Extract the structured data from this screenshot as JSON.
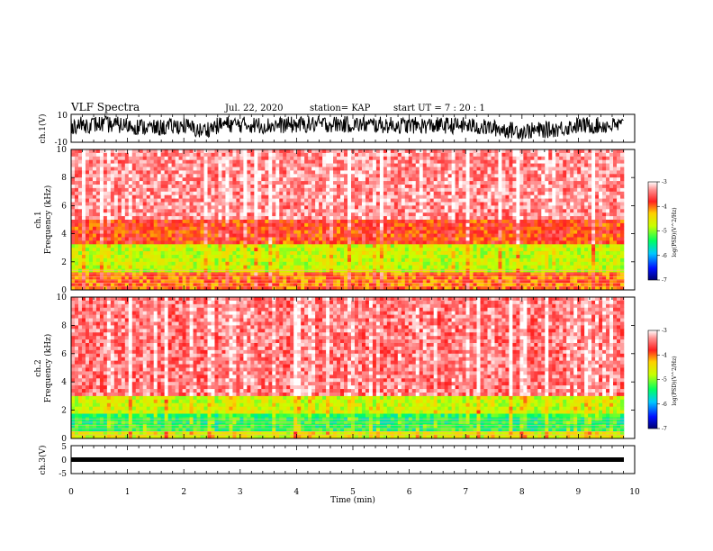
{
  "header": {
    "title": "VLF Spectra",
    "date": "Jul. 22, 2020",
    "station": "station= KAP",
    "start": "start  UT =   7 : 20 : 1"
  },
  "chart_data": [
    {
      "type": "line",
      "title": "",
      "ylabel": "ch.1(V)",
      "ylim": [
        -10,
        10
      ],
      "yticks": [
        "10",
        "-10"
      ],
      "xlim": [
        0,
        10
      ],
      "series": [
        {
          "values_description_free": true,
          "level_profile": [
            {
              "t": 0.0,
              "v": 2
            },
            {
              "t": 0.5,
              "v": 3
            },
            {
              "t": 1.0,
              "v": 2
            },
            {
              "t": 1.5,
              "v": 0
            },
            {
              "t": 2.0,
              "v": 2
            },
            {
              "t": 2.3,
              "v": -2
            },
            {
              "t": 2.7,
              "v": 3
            },
            {
              "t": 3.5,
              "v": 2
            },
            {
              "t": 4.5,
              "v": 3
            },
            {
              "t": 6.0,
              "v": 2
            },
            {
              "t": 7.0,
              "v": 2
            },
            {
              "t": 8.0,
              "v": -2
            },
            {
              "t": 8.5,
              "v": -1
            },
            {
              "t": 9.0,
              "v": 2
            },
            {
              "t": 9.8,
              "v": 2
            }
          ]
        }
      ]
    },
    {
      "type": "heatmap",
      "title": "",
      "ylabel": "ch.1\nFrequency (kHz)",
      "ylim": [
        0,
        10
      ],
      "yticks": [
        "0",
        "2",
        "4",
        "6",
        "8",
        "10"
      ],
      "xlim": [
        0,
        10
      ],
      "colorbar": {
        "label": "log(PSD)(V^2/Hz)",
        "range": [
          -7,
          -3
        ],
        "ticks": [
          "-3",
          "-4",
          "-5",
          "-6",
          "-7"
        ]
      },
      "band_levels": [
        {
          "f_max": 1.2,
          "level": -4.0
        },
        {
          "f_max": 3.2,
          "level": -4.7
        },
        {
          "f_max": 5.0,
          "level": -3.8
        },
        {
          "f_max": 10.0,
          "level": -3.3
        }
      ]
    },
    {
      "type": "heatmap",
      "title": "",
      "ylabel": "ch.2\nFrequency (kHz)",
      "ylim": [
        0,
        10
      ],
      "yticks": [
        "0",
        "2",
        "4",
        "6",
        "8",
        "10"
      ],
      "xlim": [
        0,
        10
      ],
      "colorbar": {
        "label": "log(PSD)(V^2/Hz)",
        "range": [
          -7,
          -3
        ],
        "ticks": [
          "-3",
          "-4",
          "-5",
          "-6",
          "-7"
        ]
      },
      "band_levels": [
        {
          "f_max": 0.4,
          "level": -4.6
        },
        {
          "f_max": 1.8,
          "level": -5.3
        },
        {
          "f_max": 3.0,
          "level": -4.7
        },
        {
          "f_max": 10.0,
          "level": -3.4
        }
      ]
    },
    {
      "type": "line",
      "title": "",
      "ylabel": "ch.3(V)",
      "ylim": [
        -5,
        5
      ],
      "yticks": [
        "5",
        "0",
        "-5"
      ],
      "xlim": [
        0,
        10
      ],
      "xlabel": "Time (min)",
      "xticks": [
        "0",
        "1",
        "2",
        "3",
        "4",
        "5",
        "6",
        "7",
        "8",
        "9",
        "10"
      ],
      "series": [
        {
          "level_profile": [
            {
              "t": 0.0,
              "v": 0
            },
            {
              "t": 9.8,
              "v": 0
            }
          ]
        }
      ]
    }
  ],
  "colors": {
    "ink": "#000000",
    "background": "#ffffff"
  }
}
